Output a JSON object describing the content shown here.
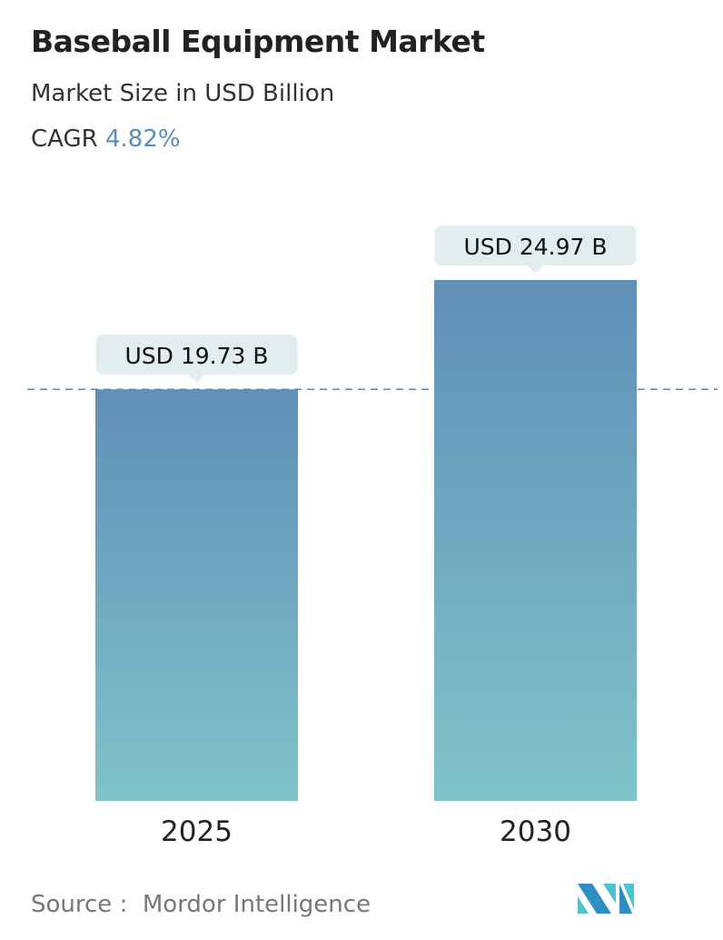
{
  "header": {
    "title": "Baseball Equipment Market",
    "subtitle": "Market Size in USD Billion",
    "cagr_label": "CAGR",
    "cagr_value": "4.82%"
  },
  "chart_data": {
    "type": "bar",
    "categories": [
      "2025",
      "2030"
    ],
    "values": [
      19.73,
      24.97
    ],
    "data_labels": [
      "USD 19.73 B",
      "USD 24.97 B"
    ],
    "title": "Baseball Equipment Market",
    "ylabel": "Market Size in USD Billion",
    "ylim": [
      0,
      25
    ],
    "grid": false,
    "reference_line": 19.73,
    "colors": {
      "bar_top": "#5f90b8",
      "bar_bottom": "#80c3c9",
      "label_bg": "#e3ecef",
      "reference_line": "#5f86a8"
    }
  },
  "footer": {
    "source_label": "Source :",
    "source_value": "Mordor Intelligence"
  },
  "logo": {
    "text": "MI"
  }
}
